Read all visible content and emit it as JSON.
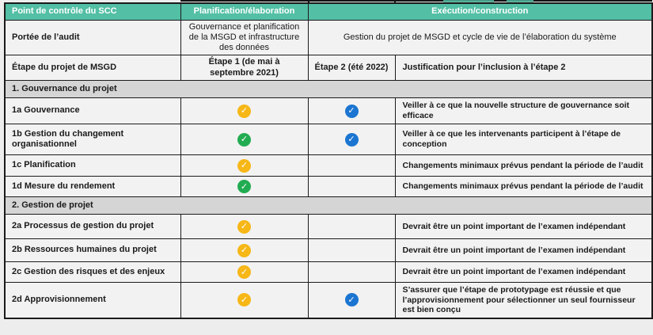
{
  "colors": {
    "teal": "#53BFA5",
    "yellow": "#F6B717",
    "green": "#22AC52",
    "blue": "#1B75D1",
    "section_gray": "#D5D5D5",
    "cell_bg": "#F2F2F2",
    "page_bg": "#EDEDED"
  },
  "icons": {
    "check_glyph": "✓"
  },
  "header": {
    "col1": "Point de contrôle du SCC",
    "col2": "Planification/élaboration",
    "col34": "Exécution/construction"
  },
  "scope": {
    "label": "Portée de l’audit",
    "planification": "Gouvernance et planification de la MSGD et infrastructure des données",
    "execution": "Gestion du projet de MSGD et cycle de vie de l’élaboration du système"
  },
  "stage": {
    "label": "Étape du projet de MSGD",
    "etape1": "Étape 1 (de mai à septembre 2021)",
    "etape2": "Étape 2 (été 2022)",
    "justification": "Justification pour l’inclusion à l’étape 2"
  },
  "section1": {
    "title": "1. Gouvernance du projet"
  },
  "section2": {
    "title": "2. Gestion de projet"
  },
  "rows": [
    {
      "label": "1a Gouvernance",
      "check1": "yellow",
      "check2": "blue",
      "note": "Veiller à ce que  la nouvelle structure de gouvernance soit efficace"
    },
    {
      "label": "1b Gestion du changement organisationnel",
      "check1": "green",
      "check2": "blue",
      "note": "Veiller à ce que les intervenants participent à l’étape de conception"
    },
    {
      "label": "1c Planification",
      "check1": "yellow",
      "check2": null,
      "note": "Changements minimaux prévus pendant la période de l’audit"
    },
    {
      "label": "1d Mesure du rendement",
      "check1": "green",
      "check2": null,
      "note": "Changements minimaux prévus pendant la période de l’audit"
    },
    {
      "label": "2a Processus de gestion du projet",
      "check1": "yellow",
      "check2": null,
      "note": "Devrait être un point important de l’examen indépendant"
    },
    {
      "label": "2b Ressources humaines du projet",
      "check1": "yellow",
      "check2": null,
      "note": "Devrait être un point important de l’examen indépendant"
    },
    {
      "label": "2c Gestion des risques et des enjeux",
      "check1": "yellow",
      "check2": null,
      "note": "Devrait être un point important de l’examen indépendant"
    },
    {
      "label": "2d Approvisionnement",
      "check1": "yellow",
      "check2": "blue",
      "note": "S’assurer que l’étape de prototypage est réussie et que l’approvisionnement pour sélectionner un seul fournisseur est bien conçu"
    }
  ]
}
